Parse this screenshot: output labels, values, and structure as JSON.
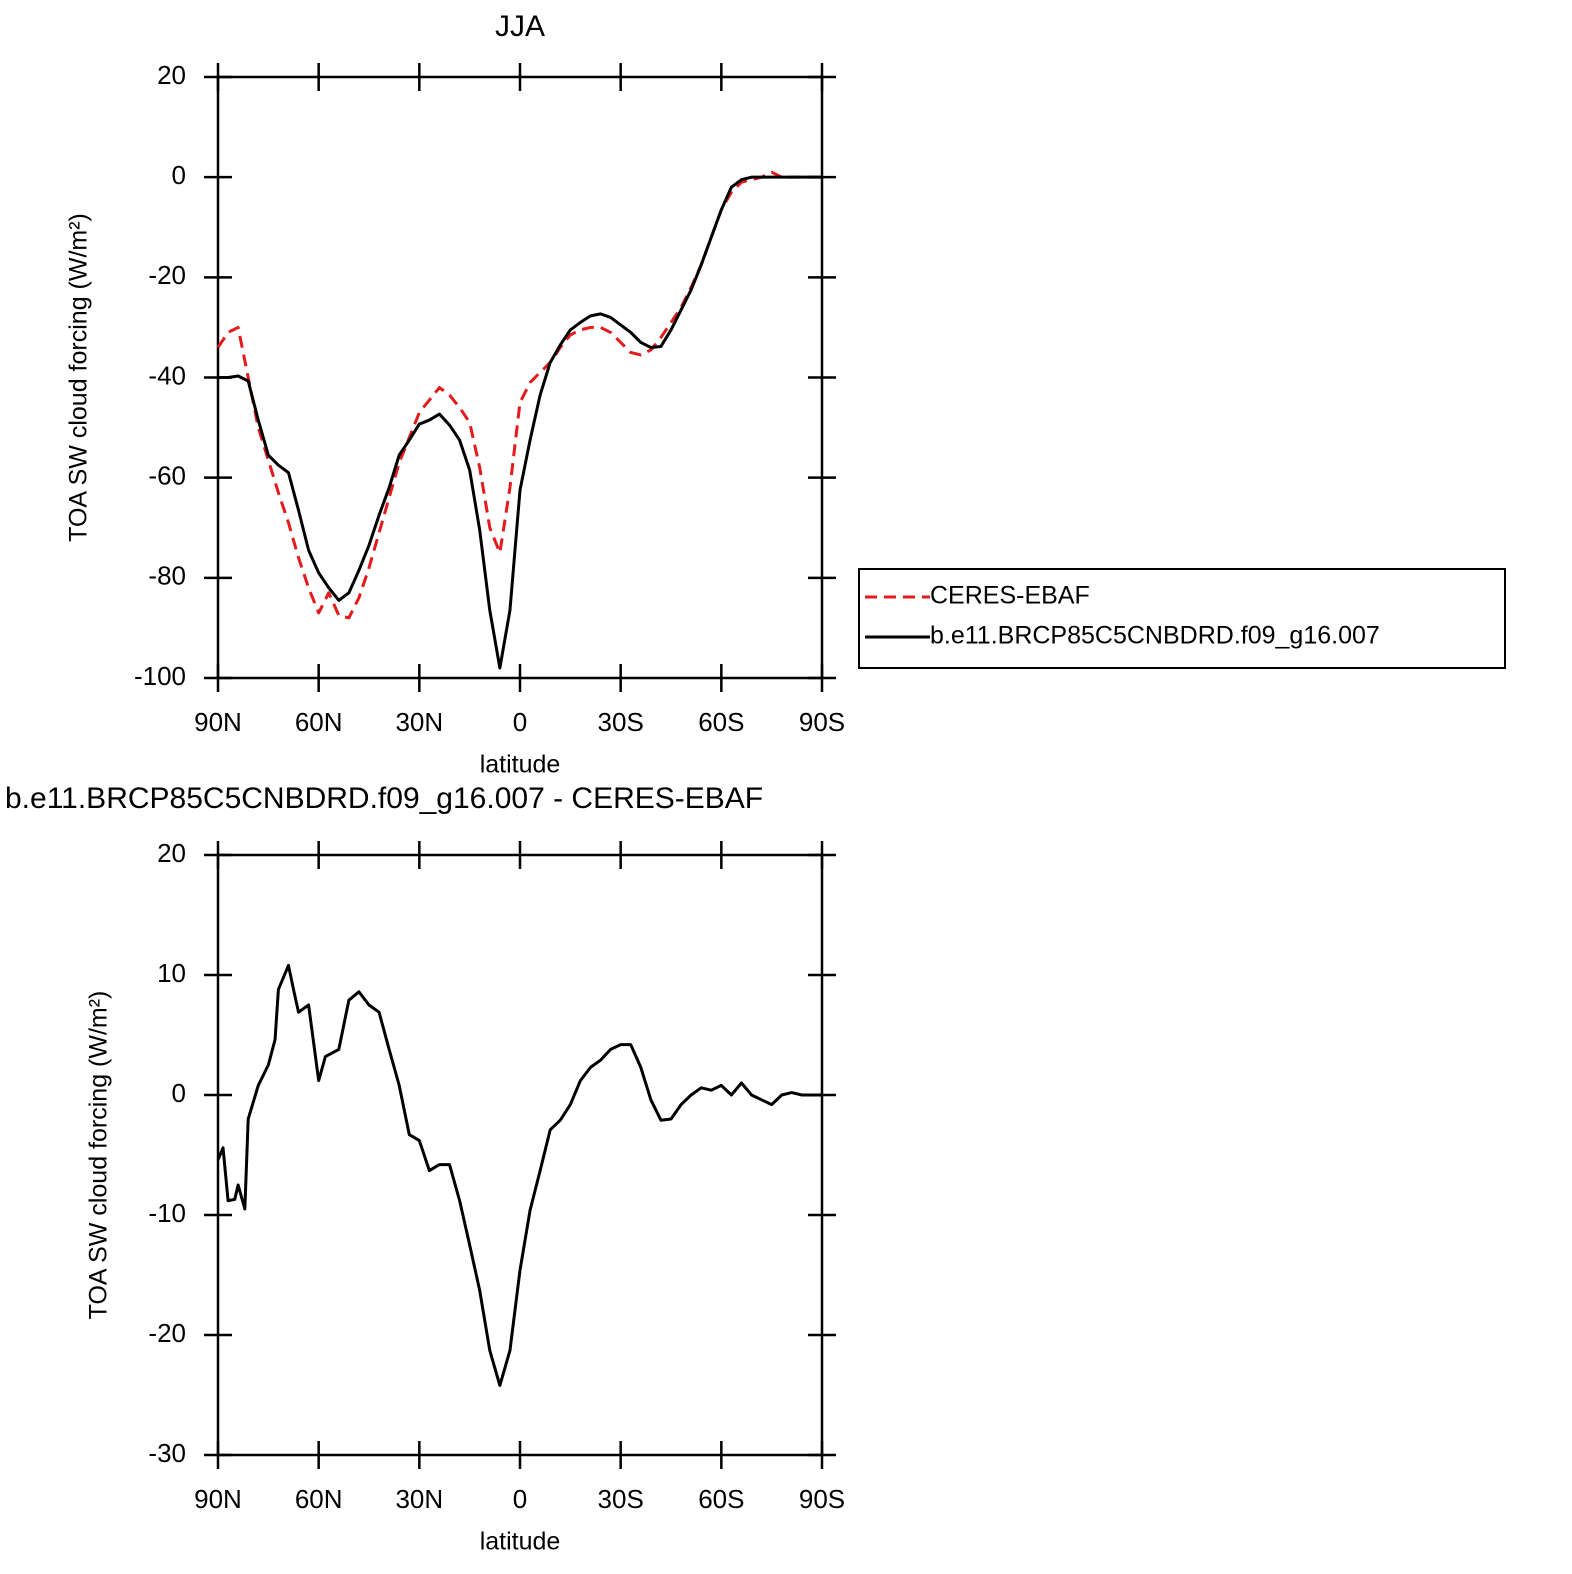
{
  "chart_data": [
    {
      "type": "line",
      "title": "JJA",
      "xlabel": "latitude",
      "ylabel": "TOA SW cloud forcing (W/m²)",
      "x": [
        90,
        87,
        84,
        81,
        78,
        75,
        72,
        69,
        66,
        63,
        60,
        57,
        54,
        51,
        48,
        45,
        42,
        39,
        36,
        33,
        30,
        27,
        24,
        21,
        18,
        15,
        12,
        9,
        6,
        3,
        0,
        -3,
        -6,
        -9,
        -12,
        -15,
        -18,
        -21,
        -24,
        -27,
        -30,
        -33,
        -36,
        -39,
        -42,
        -45,
        -48,
        -51,
        -54,
        -57,
        -60,
        -63,
        -66,
        -69,
        -72,
        -75,
        -78,
        -81,
        -84,
        -87,
        -90
      ],
      "series": [
        {
          "name": "CERES-EBAF",
          "color": "#e41a1c",
          "line_style": "dashed",
          "values": [
            -34,
            -31,
            -30,
            -40,
            -50,
            -56.5,
            -63,
            -69,
            -76,
            -82,
            -87,
            -83,
            -87.5,
            -88,
            -84,
            -78,
            -71,
            -64,
            -57,
            -52,
            -47,
            -44.5,
            -42,
            -43.5,
            -46,
            -49,
            -58,
            -70,
            -75,
            -62,
            -45,
            -41,
            -39,
            -37,
            -34,
            -31.5,
            -30.5,
            -30,
            -30,
            -31,
            -33,
            -35,
            -35.5,
            -34.5,
            -32,
            -29,
            -26,
            -22,
            -17.5,
            -12,
            -6.5,
            -3,
            -1,
            -0.5,
            0,
            1,
            0,
            0,
            0,
            0,
            0
          ]
        },
        {
          "name": "b.e11.BRCP85C5CNBDRD.f09_g16.007",
          "color": "#000000",
          "line_style": "solid",
          "values": [
            -40,
            -40,
            -39.7,
            -40.7,
            -48.5,
            -55.5,
            -57.5,
            -59,
            -66.5,
            -74.5,
            -79,
            -82,
            -84.5,
            -83,
            -78.5,
            -73.5,
            -67.5,
            -62,
            -55.5,
            -52.5,
            -49.3,
            -48.5,
            -47.3,
            -49.5,
            -52.5,
            -58.5,
            -70.5,
            -86.5,
            -98,
            -86.5,
            -62.5,
            -52.5,
            -43.5,
            -37,
            -33.5,
            -30.5,
            -29,
            -27.7,
            -27.3,
            -28,
            -29.5,
            -31,
            -33,
            -34,
            -33.8,
            -30.5,
            -26.5,
            -22.5,
            -17.5,
            -12,
            -6.5,
            -2,
            -0.5,
            0,
            0,
            0,
            0,
            0,
            0,
            0,
            0
          ]
        }
      ],
      "xlim": [
        90,
        -90
      ],
      "xticks": [
        {
          "value": 90,
          "label": "90N"
        },
        {
          "value": 60,
          "label": "60N"
        },
        {
          "value": 30,
          "label": "30N"
        },
        0,
        {
          "value": -30,
          "label": "30S"
        },
        {
          "value": -60,
          "label": "60S"
        },
        {
          "value": -90,
          "label": "90S"
        }
      ],
      "ylim": [
        -100,
        20
      ],
      "yticks": [
        -100,
        -80,
        -60,
        -40,
        -20,
        0,
        20
      ],
      "legend": "right"
    },
    {
      "type": "line",
      "title": "b.e11.BRCP85C5CNBDRD.f09_g16.007 - CERES-EBAF",
      "xlabel": "latitude",
      "ylabel": "TOA SW cloud forcing (W/m²)",
      "x": [
        90,
        88.5,
        87,
        85,
        84,
        82,
        81,
        78,
        75,
        73,
        72,
        70.5,
        69,
        67.5,
        66,
        63,
        60,
        58,
        54,
        51,
        48,
        45,
        42,
        39,
        36,
        33,
        30,
        27,
        24,
        21,
        18,
        15,
        12,
        9,
        6,
        3,
        0,
        -3,
        -6,
        -9,
        -12,
        -15,
        -18,
        -21,
        -24,
        -27,
        -30,
        -33,
        -36,
        -39,
        -42,
        -45,
        -48,
        -51,
        -54,
        -57,
        -60,
        -63,
        -66,
        -69,
        -72,
        -75,
        -78,
        -81,
        -84,
        -87,
        -90
      ],
      "series": [
        {
          "name": "b.e11.BRCP85C5CNBDRD.f09_g16.007 - CERES-EBAF",
          "color": "#000000",
          "line_style": "solid",
          "values": [
            -5.4,
            -4.4,
            -8.8,
            -8.7,
            -7.5,
            -9.5,
            -2,
            0.8,
            2.5,
            4.6,
            8.8,
            9.8,
            10.8,
            8.8,
            6.9,
            7.5,
            1.2,
            3.2,
            3.8,
            7.9,
            8.6,
            7.5,
            6.9,
            3.8,
            0.8,
            -3.3,
            -3.8,
            -6.3,
            -5.8,
            -5.8,
            -8.8,
            -12.5,
            -16.3,
            -21.3,
            -24.2,
            -21.3,
            -14.6,
            -9.6,
            -6.3,
            -2.9,
            -2.1,
            -0.8,
            1.2,
            2.3,
            2.9,
            3.8,
            4.2,
            4.2,
            2.3,
            -0.4,
            -2.1,
            -2,
            -0.8,
            0,
            0.6,
            0.4,
            0.8,
            0,
            1,
            0,
            -0.4,
            -0.8,
            0,
            0.2,
            0,
            0,
            0
          ]
        }
      ],
      "xlim": [
        90,
        -90
      ],
      "xticks": [
        {
          "value": 90,
          "label": "90N"
        },
        {
          "value": 60,
          "label": "60N"
        },
        {
          "value": 30,
          "label": "30N"
        },
        0,
        {
          "value": -30,
          "label": "30S"
        },
        {
          "value": -60,
          "label": "60S"
        },
        {
          "value": -90,
          "label": "90S"
        }
      ],
      "ylim": [
        -30,
        20
      ],
      "yticks": [
        -30,
        -20,
        -10,
        0,
        10,
        20
      ]
    }
  ]
}
